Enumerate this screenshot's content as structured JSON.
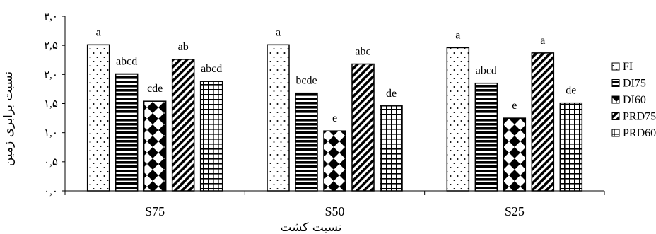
{
  "chart_data": {
    "type": "bar",
    "title": "",
    "xlabel": "نسبت کشت",
    "ylabel": "نسبت برابری زمین",
    "ylim": [
      0,
      3
    ],
    "yticks": [
      0,
      0.5,
      1,
      1.5,
      2,
      2.5,
      3
    ],
    "ytick_labels": [
      "۰,۰",
      "۰,۵",
      "۱,۰",
      "۱,۵",
      "۲,۰",
      "۲,۵",
      "۳,۰"
    ],
    "categories": [
      "S75",
      "S50",
      "S25"
    ],
    "series": [
      {
        "name": "FI",
        "pattern": "dots",
        "values": [
          2.51,
          2.51,
          2.46
        ],
        "labels": [
          "a",
          "a",
          "a"
        ]
      },
      {
        "name": "DI75",
        "pattern": "hlines",
        "values": [
          2.01,
          1.68,
          1.85
        ],
        "labels": [
          "abcd",
          "bcde",
          "abcd"
        ]
      },
      {
        "name": "DI60",
        "pattern": "diamonds",
        "values": [
          1.54,
          1.03,
          1.25
        ],
        "labels": [
          "cde",
          "e",
          "e"
        ]
      },
      {
        "name": "PRD75",
        "pattern": "diag",
        "values": [
          2.26,
          2.18,
          2.37
        ],
        "labels": [
          "ab",
          "abc",
          "a"
        ]
      },
      {
        "name": "PRD60",
        "pattern": "grid",
        "values": [
          1.88,
          1.46,
          1.51
        ],
        "labels": [
          "abcd",
          "de",
          "de"
        ]
      }
    ],
    "legend": "right",
    "grid": false
  }
}
